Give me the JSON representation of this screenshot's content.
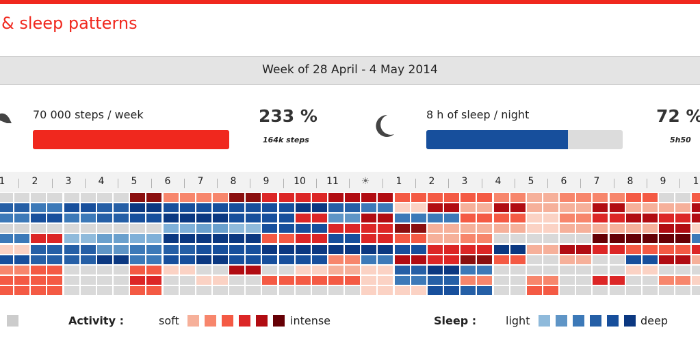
{
  "header": {
    "title": "& sleep patterns",
    "week": "Week of 28 April - 4 May 2014"
  },
  "activity": {
    "goal": "70 000 steps / week",
    "percent": "233 %",
    "detail": "164k steps",
    "progress": 1.0,
    "color": "#f0281e"
  },
  "sleep": {
    "goal": "8 h of sleep / night",
    "percent": "72 %",
    "detail": "5h50",
    "progress": 0.72,
    "color": "#174f9c"
  },
  "hours": [
    "1",
    "2",
    "3",
    "4",
    "5",
    "6",
    "7",
    "8",
    "9",
    "10",
    "11",
    "sun-icon",
    "1",
    "2",
    "3",
    "4",
    "5",
    "6",
    "7",
    "8",
    "9",
    "1"
  ],
  "legend": {
    "activity_label": "Activity :",
    "soft": "soft",
    "intense": "intense",
    "sleep_label": "Sleep :",
    "light": "light",
    "deep": "deep",
    "activity_colors": [
      "#f6b09a",
      "#f7866c",
      "#f45a44",
      "#dc2626",
      "#b10c12",
      "#660005"
    ],
    "sleep_colors": [
      "#8fbadb",
      "#5f95c6",
      "#3c79b8",
      "#255fa6",
      "#174f9c",
      "#0b3881"
    ],
    "none_color": "#cccccc"
  },
  "grid_rows": [
    "7777D11D334422210112N22N",
    "XWYXZYYYYZXWL4040040042Z",
    "WYWXYZZYY3V4WW22L134345L",
    "QNNNNSTUYY33D000L0004LNN",
    "W3UTSZZZ23Y3201NNN555W2L",
    "LXXVWXYYZZZZY33Z0432234W",
    "YXXZWYZYYY1W43D2N0NY40N2",
    "12NN2LN4NL0LXZWNNNNLNNLN",
    "22NN3NLN222LWX1N1N3N1L1N",
    "22NN2NNNNNNLLYXN2NNNNNNN"
  ]
}
